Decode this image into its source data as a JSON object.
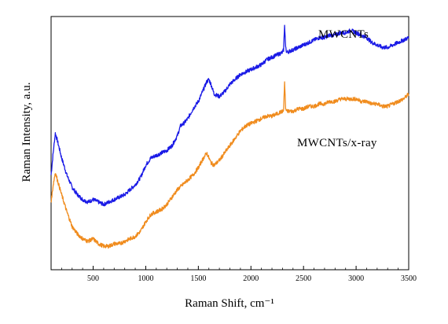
{
  "chart_data": {
    "type": "line",
    "title": "",
    "xlabel": "Raman Shift, cm⁻¹",
    "ylabel": "Raman Intensity, a.u.",
    "xlim": [
      100,
      3500
    ],
    "ylim": [
      0,
      100
    ],
    "y_tick_labels_shown": false,
    "grid": false,
    "legend": "none (series labeled directly on plot)",
    "x_ticks": [
      500,
      1000,
      1500,
      2000,
      2500,
      3000,
      3500
    ],
    "x_tick_labels": [
      "500",
      "1000",
      "1500",
      "2000",
      "2500",
      "3000",
      "3500"
    ],
    "series": [
      {
        "name": "MWCNTs",
        "color": "#1a1ae6",
        "x": [
          100,
          120,
          140,
          160,
          200,
          250,
          300,
          350,
          400,
          450,
          500,
          550,
          600,
          650,
          700,
          750,
          800,
          850,
          900,
          950,
          1000,
          1050,
          1100,
          1150,
          1200,
          1250,
          1300,
          1330,
          1360,
          1400,
          1450,
          1500,
          1550,
          1580,
          1600,
          1620,
          1650,
          1700,
          1750,
          1800,
          1850,
          1900,
          1950,
          2000,
          2050,
          2100,
          2150,
          2200,
          2250,
          2300,
          2310,
          2320,
          2330,
          2340,
          2400,
          2450,
          2500,
          2550,
          2600,
          2650,
          2700,
          2750,
          2800,
          2850,
          2900,
          2950,
          3000,
          3050,
          3100,
          3150,
          3200,
          3250,
          3300,
          3350,
          3400,
          3450,
          3500
        ],
        "values": [
          37,
          46,
          54,
          51,
          44,
          37,
          32,
          29,
          27,
          26,
          27,
          26,
          25,
          26,
          27,
          28,
          29,
          31,
          33,
          36,
          41,
          44,
          45,
          46,
          47,
          49,
          53,
          57,
          58,
          60,
          64,
          67,
          72,
          75,
          76,
          74,
          70,
          69,
          71,
          74,
          76,
          78,
          79,
          80,
          81,
          82,
          84,
          85,
          86,
          87,
          88,
          98,
          89,
          87,
          88,
          89,
          90,
          91,
          92,
          93,
          93,
          94,
          94,
          95,
          95,
          96,
          95,
          94,
          93,
          91,
          90,
          89,
          89,
          90,
          91,
          92,
          93
        ]
      },
      {
        "name": "MWCNTs/x-ray",
        "color": "#f08c1e",
        "x": [
          100,
          120,
          140,
          160,
          200,
          250,
          300,
          350,
          400,
          450,
          500,
          550,
          600,
          650,
          700,
          750,
          800,
          850,
          900,
          950,
          1000,
          1050,
          1100,
          1150,
          1200,
          1250,
          1300,
          1350,
          1400,
          1450,
          1500,
          1550,
          1580,
          1600,
          1620,
          1650,
          1700,
          1750,
          1800,
          1850,
          1900,
          1950,
          2000,
          2050,
          2100,
          2150,
          2200,
          2250,
          2300,
          2310,
          2320,
          2330,
          2340,
          2400,
          2450,
          2500,
          2550,
          2600,
          2650,
          2700,
          2750,
          2800,
          2850,
          2900,
          2950,
          3000,
          3050,
          3100,
          3150,
          3200,
          3250,
          3300,
          3350,
          3400,
          3450,
          3500
        ],
        "values": [
          26,
          33,
          38,
          35,
          29,
          22,
          16,
          13,
          11,
          10,
          11,
          9,
          8,
          8,
          9,
          9,
          10,
          11,
          12,
          14,
          18,
          21,
          22,
          23,
          25,
          28,
          31,
          33,
          35,
          37,
          40,
          44,
          46,
          44,
          42,
          41,
          43,
          46,
          49,
          52,
          55,
          57,
          58,
          59,
          60,
          61,
          61,
          62,
          63,
          63,
          75,
          64,
          63,
          63,
          64,
          64,
          65,
          65,
          66,
          66,
          67,
          67,
          68,
          68,
          68,
          68,
          67,
          67,
          66,
          66,
          65,
          65,
          66,
          67,
          68,
          70
        ]
      }
    ],
    "annotations": [
      {
        "text": "MWCNTs",
        "series": 0
      },
      {
        "text": "MWCNTs/x-ray",
        "series": 1
      }
    ]
  }
}
